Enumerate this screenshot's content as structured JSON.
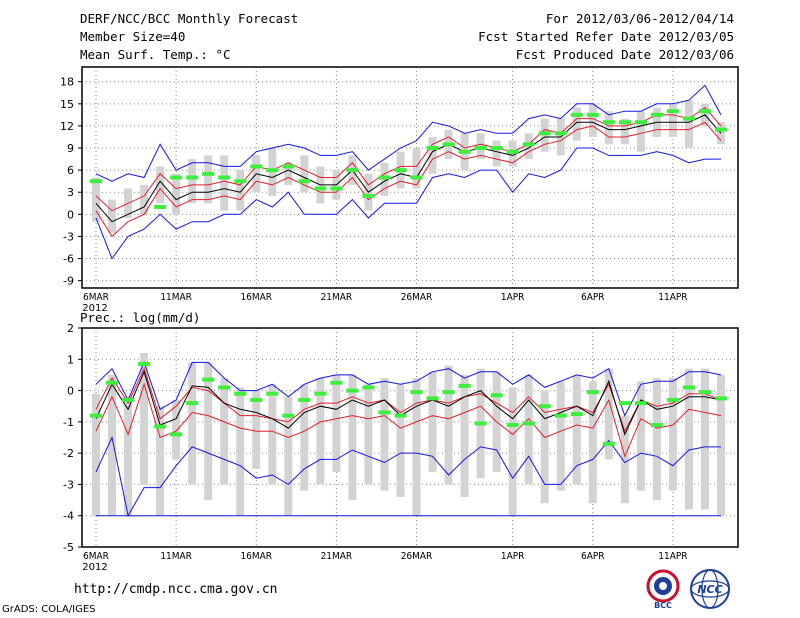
{
  "header": {
    "title": "DERF/NCC/BCC Monthly Forecast",
    "member_size": "Member Size=40",
    "variable": "Mean Surf. Temp.: °C",
    "forecast_range": "For 2012/03/06-2012/04/14",
    "started_refer": "Fcst Started Refer Date 2012/03/05",
    "produced": "Fcst Produced Date 2012/03/06"
  },
  "footer": {
    "url": "http://cmdp.ncc.cma.gov.cn",
    "credit": "GrADS: COLA/IGES",
    "logo1_text": "BCC",
    "logo2_text": "NCC"
  },
  "colors": {
    "box": "#d3d3d3",
    "obs": "#3cf03c",
    "mean": "#000000",
    "inner": "#e0202c",
    "outer": "#1515e6",
    "grid": "#888888"
  },
  "chart_data": [
    {
      "type": "box-ensemble",
      "title": "Mean Surf. Temp.: °C",
      "days": 40,
      "x_tick_labels": [
        "6MAR",
        "11MAR",
        "16MAR",
        "21MAR",
        "26MAR",
        "1APR",
        "6APR",
        "11APR"
      ],
      "x_tick_days": [
        1,
        6,
        11,
        16,
        21,
        27,
        32,
        37
      ],
      "year_label": "2012",
      "ylim": [
        -10,
        20
      ],
      "y_ticks": [
        -9,
        -6,
        -3,
        0,
        3,
        6,
        9,
        12,
        15,
        18
      ],
      "series": {
        "mean": [
          1.5,
          -1,
          0,
          1,
          4.5,
          2,
          3,
          3,
          3.5,
          3,
          5.5,
          5,
          6,
          5,
          4,
          4,
          6,
          3,
          4.5,
          5.5,
          5,
          8.5,
          9.5,
          8.5,
          9,
          8.5,
          8,
          9,
          10.5,
          10.5,
          12.5,
          12.5,
          11.5,
          11.5,
          12,
          12.5,
          12.5,
          12.5,
          13.5,
          11
        ],
        "inner_upper": [
          2.5,
          0.5,
          1.5,
          2.5,
          5.5,
          3.5,
          4,
          4,
          4.5,
          4,
          6.5,
          6,
          7,
          6,
          5,
          5,
          7,
          4,
          5.5,
          6.5,
          6.5,
          9.5,
          10.5,
          9,
          9.5,
          9,
          8.5,
          9.5,
          11.5,
          11,
          13,
          13,
          12,
          12,
          12.5,
          13.5,
          13.5,
          13,
          14.5,
          12
        ],
        "inner_lower": [
          0.5,
          -3,
          -1,
          0,
          3.5,
          1,
          2,
          2,
          2.5,
          2,
          4.5,
          4,
          5,
          4,
          3,
          3,
          5,
          2,
          3.5,
          4.5,
          4,
          7.5,
          8.5,
          7.5,
          8,
          7.5,
          7,
          8.5,
          9.5,
          10,
          11.5,
          12,
          10.5,
          10.5,
          11,
          11.5,
          11.5,
          11.5,
          12.5,
          10
        ],
        "outer_upper": [
          5.5,
          4.5,
          5.5,
          5,
          9.5,
          6,
          7,
          7,
          6.5,
          6.5,
          8.5,
          9,
          9.5,
          9,
          8,
          8,
          8.5,
          6,
          7.5,
          9,
          10,
          12.5,
          12,
          11,
          11.5,
          11,
          11,
          13,
          13.5,
          13,
          15,
          15,
          13.5,
          14,
          14,
          15,
          15,
          15.5,
          17.5,
          13.5
        ],
        "outer_lower": [
          -0.5,
          -6,
          -3,
          -2,
          0,
          -2,
          -1,
          -1,
          0,
          0,
          2,
          1,
          3,
          0,
          0,
          0,
          2,
          -0.5,
          1.5,
          1.5,
          1.5,
          5,
          5.5,
          5,
          6,
          6,
          3,
          5.5,
          5,
          6,
          9,
          9,
          8,
          8,
          8,
          8.5,
          8,
          7,
          7.5,
          7.5
        ],
        "box_high": [
          5,
          2,
          3.5,
          4,
          6.5,
          5.5,
          7.5,
          8,
          8,
          6,
          8,
          9,
          7,
          8,
          6.5,
          6,
          8,
          5.5,
          7,
          8.5,
          9,
          10.5,
          11.5,
          11,
          11,
          10,
          10,
          11,
          13,
          13,
          14.5,
          15,
          14,
          13,
          14,
          14.5,
          15,
          15.5,
          15,
          12.5
        ],
        "box_low": [
          -1,
          -2.5,
          -0.5,
          0,
          1.5,
          0,
          1.5,
          1.5,
          0.5,
          0.5,
          3,
          2.5,
          4,
          3,
          1.5,
          2,
          4,
          0.5,
          2.5,
          3.5,
          3.5,
          5.5,
          7.5,
          6,
          7.5,
          6.5,
          6.5,
          7.5,
          8.5,
          8,
          10,
          10.5,
          9.5,
          9.5,
          8.5,
          10.5,
          10.5,
          9,
          12,
          9.5
        ],
        "obs": [
          4.5,
          null,
          null,
          null,
          1,
          5,
          5,
          5.5,
          5,
          4.5,
          6.5,
          6,
          6.5,
          4.5,
          3.5,
          3.5,
          6,
          2.5,
          5,
          6,
          5,
          9,
          9.5,
          8.5,
          9,
          9,
          8.5,
          9.5,
          11,
          11,
          13.5,
          13.5,
          12.5,
          12.5,
          12.5,
          13.5,
          14,
          13,
          14,
          11.5
        ]
      }
    },
    {
      "type": "box-ensemble",
      "title": "Prec.: log(mm/d)",
      "days": 40,
      "x_tick_labels": [
        "6MAR",
        "11MAR",
        "16MAR",
        "21MAR",
        "26MAR",
        "1APR",
        "6APR",
        "11APR"
      ],
      "x_tick_days": [
        1,
        6,
        11,
        16,
        21,
        27,
        32,
        37
      ],
      "year_label": "2012",
      "ylim": [
        -5,
        2
      ],
      "y_ticks": [
        -5,
        -4,
        -3,
        -2,
        -1,
        0,
        1,
        2
      ],
      "series": {
        "mean": [
          -0.9,
          0.2,
          -0.6,
          0.6,
          -1.1,
          -0.9,
          0.15,
          0.1,
          -0.4,
          -0.6,
          -0.7,
          -0.9,
          -1.2,
          -0.7,
          -0.5,
          -0.6,
          -0.3,
          -0.5,
          -0.3,
          -0.8,
          -0.5,
          -0.3,
          -0.5,
          -0.2,
          0,
          -0.5,
          -0.9,
          -0.3,
          -0.9,
          -0.7,
          -0.5,
          -0.8,
          0.3,
          -1.4,
          -0.3,
          -0.6,
          -0.5,
          -0.2,
          -0.2,
          -0.3
        ],
        "inner_upper": [
          -0.6,
          0.4,
          -0.4,
          0.7,
          -0.9,
          -0.5,
          0.1,
          0,
          -0.4,
          -0.8,
          -0.8,
          -0.9,
          -1,
          -0.6,
          -0.4,
          -0.4,
          -0.2,
          -0.4,
          -0.3,
          -0.7,
          -0.4,
          -0.3,
          -0.4,
          -0.2,
          -0.1,
          -0.4,
          -0.7,
          -0.2,
          -0.7,
          -0.6,
          -0.5,
          -0.7,
          0.2,
          -1.3,
          -0.3,
          -0.5,
          -0.4,
          -0.1,
          -0.1,
          -0.3
        ],
        "inner_lower": [
          -1.3,
          -0.2,
          -1.4,
          0.2,
          -1.5,
          -1.3,
          -0.7,
          -0.8,
          -1,
          -1.2,
          -1.3,
          -1.3,
          -1.5,
          -1.3,
          -1,
          -0.9,
          -0.8,
          -0.9,
          -0.8,
          -1.2,
          -1,
          -0.8,
          -0.9,
          -0.7,
          -0.5,
          -1,
          -1.4,
          -0.9,
          -1.5,
          -1.3,
          -1.1,
          -1.2,
          -0.3,
          -2.1,
          -0.9,
          -1.2,
          -1.1,
          -0.6,
          -0.7,
          -0.8
        ],
        "outer_upper": [
          0.2,
          0.7,
          -0.3,
          0.9,
          -0.6,
          -0.3,
          0.9,
          0.9,
          0.4,
          0,
          0,
          0.2,
          -0.2,
          0.2,
          0.4,
          0.5,
          0.5,
          0.2,
          0.3,
          0.2,
          0.3,
          0.6,
          0.7,
          0.4,
          0.6,
          0.6,
          0.2,
          0.5,
          0.1,
          0.3,
          0.5,
          0.4,
          0.7,
          -0.8,
          0.2,
          0.3,
          0.3,
          0.6,
          0.6,
          0.5
        ],
        "outer_lower": [
          -2.6,
          -1.5,
          -4,
          -3.1,
          -3.1,
          -2.4,
          -1.8,
          -2,
          -2.2,
          -2.4,
          -2.8,
          -2.7,
          -3,
          -2.5,
          -2.2,
          -2.2,
          -1.9,
          -2.1,
          -2.3,
          -2,
          -2,
          -2.1,
          -2.7,
          -2.2,
          -1.8,
          -1.9,
          -2.8,
          -2.1,
          -3,
          -3,
          -2.4,
          -2.2,
          -1.6,
          -2.3,
          -2,
          -2.1,
          -2.4,
          -1.9,
          -1.8,
          -1.8
        ],
        "box_high": [
          -0.1,
          0.5,
          -0.2,
          1.2,
          -0.5,
          -0.3,
          0.9,
          0.9,
          0.4,
          0.1,
          0,
          0.2,
          -0.2,
          0.2,
          0.4,
          0.5,
          0.5,
          0.2,
          0.4,
          0.2,
          0.4,
          0.6,
          0.8,
          0.5,
          0.7,
          0.6,
          0.1,
          0.5,
          0,
          0.3,
          0.5,
          0.3,
          0.7,
          -0.8,
          0.3,
          0.4,
          0.4,
          0.7,
          0.7,
          0.5
        ],
        "box_low": [
          -4,
          -4,
          -4,
          -3,
          -4,
          -2.2,
          -3,
          -3.5,
          -3,
          -4,
          -2.5,
          -3,
          -4,
          -3.2,
          -3,
          -2.6,
          -3.5,
          -3,
          -3.2,
          -3.4,
          -4,
          -2.6,
          -3,
          -3.4,
          -2.8,
          -2.6,
          -4,
          -3,
          -3.6,
          -3.2,
          -3,
          -3.6,
          -2.2,
          -3.6,
          -3.2,
          -3.5,
          -3.2,
          -3.8,
          -3.8,
          -4
        ],
        "floor": -4,
        "obs": [
          -0.8,
          0.25,
          -0.3,
          0.85,
          -1.15,
          -1.4,
          -0.4,
          0.35,
          0.1,
          -0.1,
          -0.3,
          -0.1,
          -0.8,
          -0.3,
          -0.1,
          0.25,
          0.0,
          0.1,
          -0.7,
          -0.8,
          -0.05,
          -0.25,
          -0.05,
          0.15,
          -1.05,
          -0.15,
          -1.1,
          -1.05,
          -0.5,
          -0.8,
          -0.75,
          -0.05,
          -1.7,
          -0.4,
          -0.4,
          -1.1,
          -0.3,
          0.1,
          -0.05,
          -0.25
        ]
      }
    }
  ]
}
